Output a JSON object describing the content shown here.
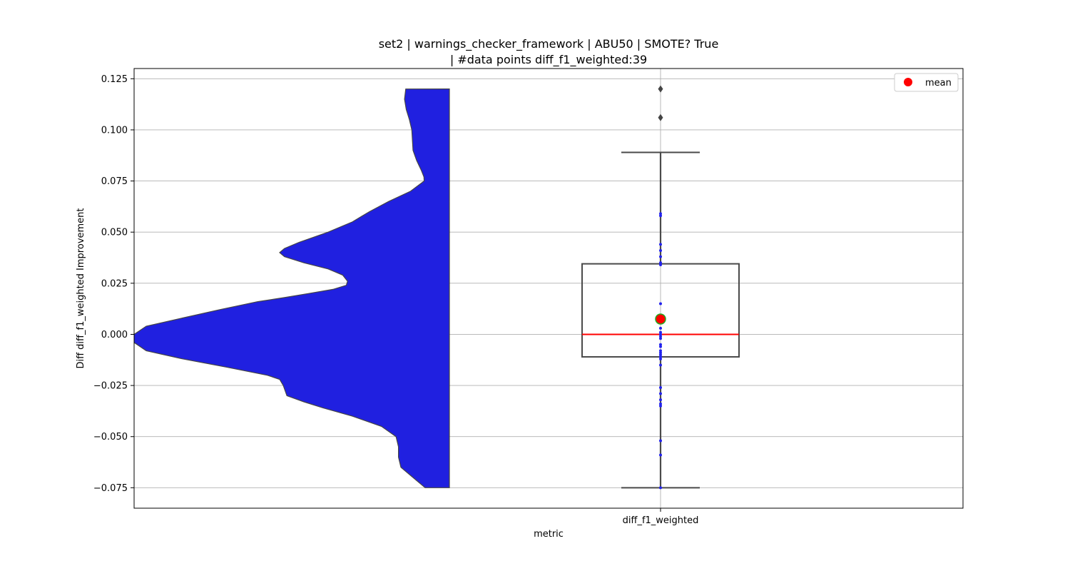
{
  "chart_data": {
    "type": "violin+box",
    "title_line1": "set2 | warnings_checker_framework | ABU50 | SMOTE? True",
    "title_line2": "| #data points diff_f1_weighted:39",
    "xlabel": "metric",
    "ylabel": "Diff diff_f1_weighted Improvement",
    "categories": [
      "diff_f1_weighted"
    ],
    "ylim": [
      -0.085,
      0.13
    ],
    "yticks": [
      -0.075,
      -0.05,
      -0.025,
      0.0,
      0.025,
      0.05,
      0.075,
      0.1,
      0.125
    ],
    "ytick_labels": [
      "−0.075",
      "−0.050",
      "−0.025",
      "0.000",
      "0.025",
      "0.050",
      "0.075",
      "0.100",
      "0.125"
    ],
    "grid": true,
    "legend": {
      "placement": "top-right",
      "entries": [
        {
          "label": "mean",
          "color": "#ff0000"
        }
      ]
    },
    "colors": {
      "violin": "#2020e0",
      "violin_edge": "#444444",
      "box_edge": "#4a4a4a",
      "median": "#ff0000",
      "mean": "#ff0000",
      "mean_edge": "#22aa22",
      "points": "#2222ee",
      "fliers": "#444444"
    },
    "box": {
      "q1": -0.011,
      "median": 0.0,
      "q3": 0.0345,
      "whisker_low": -0.075,
      "whisker_high": 0.089,
      "mean": 0.0075
    },
    "fliers": [
      0.106,
      0.12
    ],
    "points": [
      0.059,
      0.058,
      0.044,
      0.041,
      0.038,
      0.035,
      0.034,
      0.015,
      0.009,
      0.006,
      0.003,
      0.001,
      0.0,
      -0.001,
      -0.002,
      -0.005,
      -0.006,
      -0.008,
      -0.009,
      -0.01,
      -0.011,
      -0.012,
      -0.015,
      -0.026,
      -0.029,
      -0.032,
      -0.034,
      -0.035,
      -0.052,
      -0.059,
      -0.075
    ],
    "violin_density": [
      [
        0.12,
        0.18
      ],
      [
        0.115,
        0.185
      ],
      [
        0.11,
        0.178
      ],
      [
        0.105,
        0.165
      ],
      [
        0.1,
        0.155
      ],
      [
        0.09,
        0.15
      ],
      [
        0.085,
        0.135
      ],
      [
        0.08,
        0.115
      ],
      [
        0.077,
        0.105
      ],
      [
        0.075,
        0.104
      ],
      [
        0.07,
        0.16
      ],
      [
        0.065,
        0.25
      ],
      [
        0.06,
        0.33
      ],
      [
        0.055,
        0.4
      ],
      [
        0.05,
        0.5
      ],
      [
        0.045,
        0.62
      ],
      [
        0.042,
        0.68
      ],
      [
        0.04,
        0.7
      ],
      [
        0.038,
        0.68
      ],
      [
        0.035,
        0.6
      ],
      [
        0.032,
        0.5
      ],
      [
        0.029,
        0.44
      ],
      [
        0.026,
        0.42
      ],
      [
        0.024,
        0.425
      ],
      [
        0.022,
        0.48
      ],
      [
        0.02,
        0.58
      ],
      [
        0.018,
        0.68
      ],
      [
        0.016,
        0.79
      ],
      [
        0.012,
        0.95
      ],
      [
        0.008,
        1.1
      ],
      [
        0.004,
        1.25
      ],
      [
        0.0,
        1.3
      ],
      [
        -0.004,
        1.3
      ],
      [
        -0.008,
        1.25
      ],
      [
        -0.012,
        1.1
      ],
      [
        -0.016,
        0.92
      ],
      [
        -0.02,
        0.75
      ],
      [
        -0.022,
        0.7
      ],
      [
        -0.025,
        0.685
      ],
      [
        -0.03,
        0.67
      ],
      [
        -0.033,
        0.6
      ],
      [
        -0.036,
        0.52
      ],
      [
        -0.04,
        0.4
      ],
      [
        -0.045,
        0.28
      ],
      [
        -0.05,
        0.22
      ],
      [
        -0.055,
        0.21
      ],
      [
        -0.06,
        0.21
      ],
      [
        -0.065,
        0.2
      ],
      [
        -0.07,
        0.15
      ],
      [
        -0.075,
        0.1
      ]
    ]
  }
}
